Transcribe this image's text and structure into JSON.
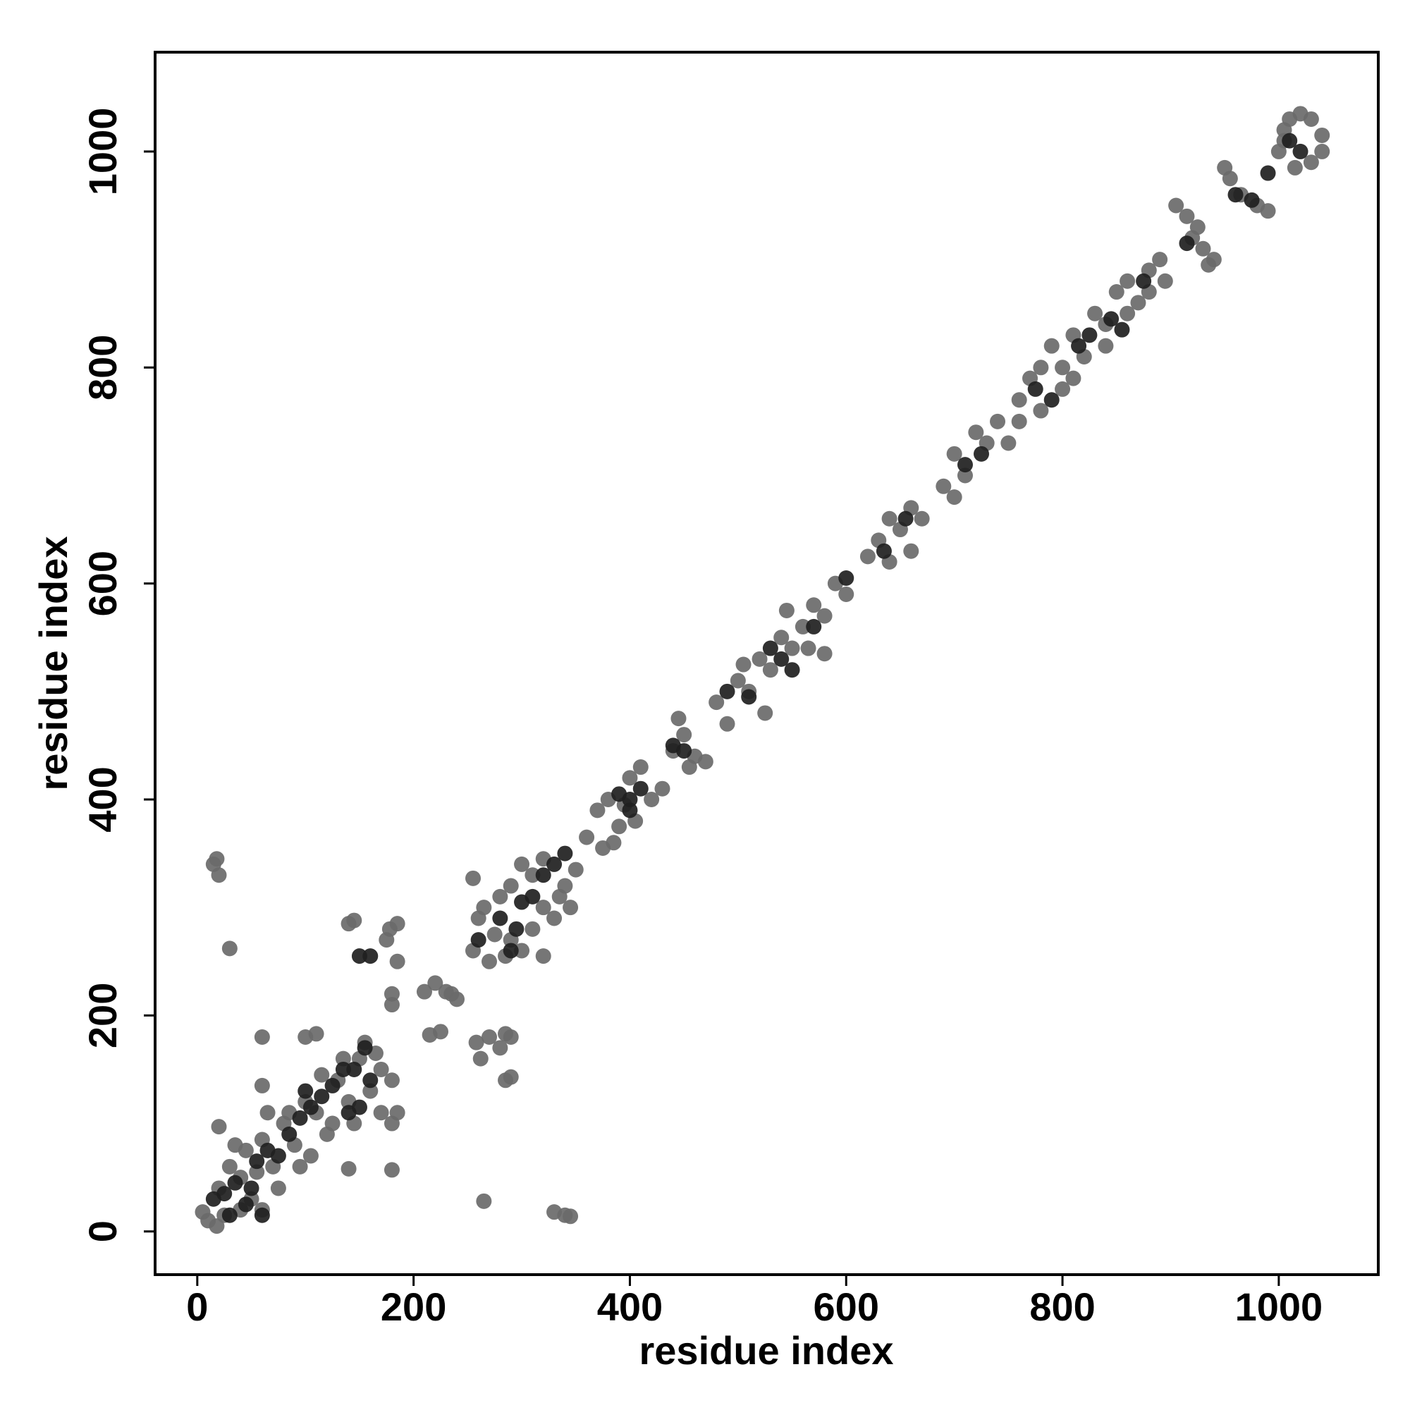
{
  "chart_data": {
    "type": "scatter",
    "xlabel": "residue index",
    "ylabel": "residue index",
    "xlim": [
      -39,
      1092
    ],
    "ylim": [
      -40,
      1092
    ],
    "xticks": [
      0,
      200,
      400,
      600,
      800,
      1000
    ],
    "yticks": [
      0,
      200,
      400,
      600,
      800,
      1000
    ],
    "grid": false,
    "series": [
      {
        "color": "#6a6a6a",
        "x": [
          15,
          20,
          18,
          30,
          20,
          60,
          60,
          100,
          110,
          140,
          145,
          140,
          180,
          185,
          178,
          180,
          180,
          175,
          185,
          180,
          185,
          265,
          330,
          340,
          345,
          255,
          262,
          258,
          270,
          285,
          290,
          285,
          290,
          280,
          210,
          220,
          230,
          215,
          225,
          240,
          235,
          320,
          5,
          10,
          18,
          20,
          30,
          40,
          50,
          60,
          45,
          60,
          70,
          80,
          90,
          100,
          110,
          120,
          130,
          140,
          150,
          160,
          170,
          180,
          75,
          95,
          105,
          125,
          135,
          155,
          170,
          65,
          85,
          55,
          35,
          25,
          115,
          145,
          165,
          40,
          255,
          260,
          265,
          270,
          280,
          290,
          300,
          310,
          320,
          330,
          340,
          350,
          290,
          300,
          310,
          275,
          285,
          320,
          335,
          345,
          360,
          370,
          380,
          390,
          400,
          410,
          420,
          430,
          385,
          395,
          405,
          440,
          450,
          460,
          470,
          445,
          455,
          375,
          480,
          490,
          500,
          510,
          520,
          530,
          540,
          550,
          560,
          570,
          580,
          590,
          600,
          545,
          525,
          505,
          565,
          580,
          620,
          630,
          640,
          650,
          660,
          660,
          640,
          670,
          690,
          700,
          710,
          720,
          730,
          740,
          700,
          750,
          760,
          770,
          780,
          790,
          800,
          810,
          820,
          830,
          840,
          850,
          860,
          870,
          880,
          890,
          760,
          780,
          800,
          810,
          840,
          860,
          880,
          895,
          905,
          915,
          920,
          930,
          940,
          950,
          955,
          965,
          980,
          990,
          1000,
          1005,
          1010,
          1020,
          1030,
          1040,
          1040,
          1030,
          1015,
          1005,
          925,
          935
        ],
        "values": [
          340,
          330,
          345,
          262,
          97,
          180,
          135,
          180,
          183,
          285,
          288,
          58,
          57,
          285,
          280,
          220,
          210,
          270,
          250,
          100,
          110,
          28,
          18,
          15,
          14,
          327,
          160,
          175,
          180,
          183,
          180,
          140,
          143,
          170,
          222,
          230,
          222,
          182,
          185,
          215,
          220,
          255,
          18,
          10,
          5,
          40,
          60,
          50,
          30,
          20,
          75,
          85,
          60,
          100,
          80,
          120,
          110,
          90,
          140,
          120,
          160,
          130,
          150,
          140,
          40,
          60,
          70,
          100,
          160,
          175,
          110,
          110,
          110,
          55,
          80,
          15,
          145,
          100,
          165,
          20,
          260,
          290,
          300,
          250,
          310,
          320,
          340,
          330,
          300,
          290,
          320,
          335,
          270,
          260,
          280,
          275,
          255,
          345,
          310,
          300,
          365,
          390,
          400,
          375,
          420,
          430,
          400,
          410,
          360,
          395,
          380,
          445,
          460,
          440,
          435,
          475,
          430,
          355,
          490,
          470,
          510,
          500,
          530,
          520,
          550,
          540,
          560,
          580,
          570,
          600,
          590,
          575,
          480,
          525,
          540,
          535,
          625,
          640,
          660,
          650,
          670,
          630,
          620,
          660,
          690,
          720,
          700,
          740,
          730,
          750,
          680,
          730,
          770,
          790,
          800,
          820,
          780,
          830,
          810,
          850,
          840,
          870,
          880,
          860,
          890,
          900,
          750,
          760,
          800,
          790,
          820,
          850,
          870,
          880,
          950,
          940,
          920,
          910,
          900,
          985,
          975,
          960,
          950,
          945,
          1000,
          1020,
          1030,
          1035,
          1030,
          1015,
          1000,
          990,
          985,
          1010,
          930,
          895
        ]
      },
      {
        "color": "#1f1f1f",
        "x": [
          15,
          25,
          35,
          45,
          55,
          65,
          75,
          85,
          95,
          105,
          115,
          125,
          135,
          145,
          155,
          160,
          30,
          60,
          150,
          160,
          100,
          140,
          150,
          50,
          260,
          280,
          290,
          300,
          310,
          320,
          330,
          340,
          295,
          390,
          400,
          410,
          440,
          450,
          400,
          490,
          510,
          530,
          540,
          550,
          570,
          600,
          635,
          655,
          710,
          725,
          775,
          790,
          815,
          825,
          845,
          855,
          875,
          960,
          975,
          1010,
          1020,
          990,
          915
        ],
        "values": [
          30,
          35,
          45,
          25,
          65,
          75,
          70,
          90,
          105,
          115,
          125,
          135,
          150,
          150,
          170,
          140,
          15,
          15,
          255,
          255,
          130,
          110,
          115,
          40,
          270,
          290,
          260,
          305,
          310,
          330,
          340,
          350,
          280,
          405,
          400,
          410,
          450,
          445,
          390,
          500,
          495,
          540,
          530,
          520,
          560,
          605,
          630,
          660,
          710,
          720,
          780,
          770,
          820,
          830,
          845,
          835,
          880,
          960,
          955,
          1010,
          1000,
          980,
          915
        ]
      }
    ]
  }
}
